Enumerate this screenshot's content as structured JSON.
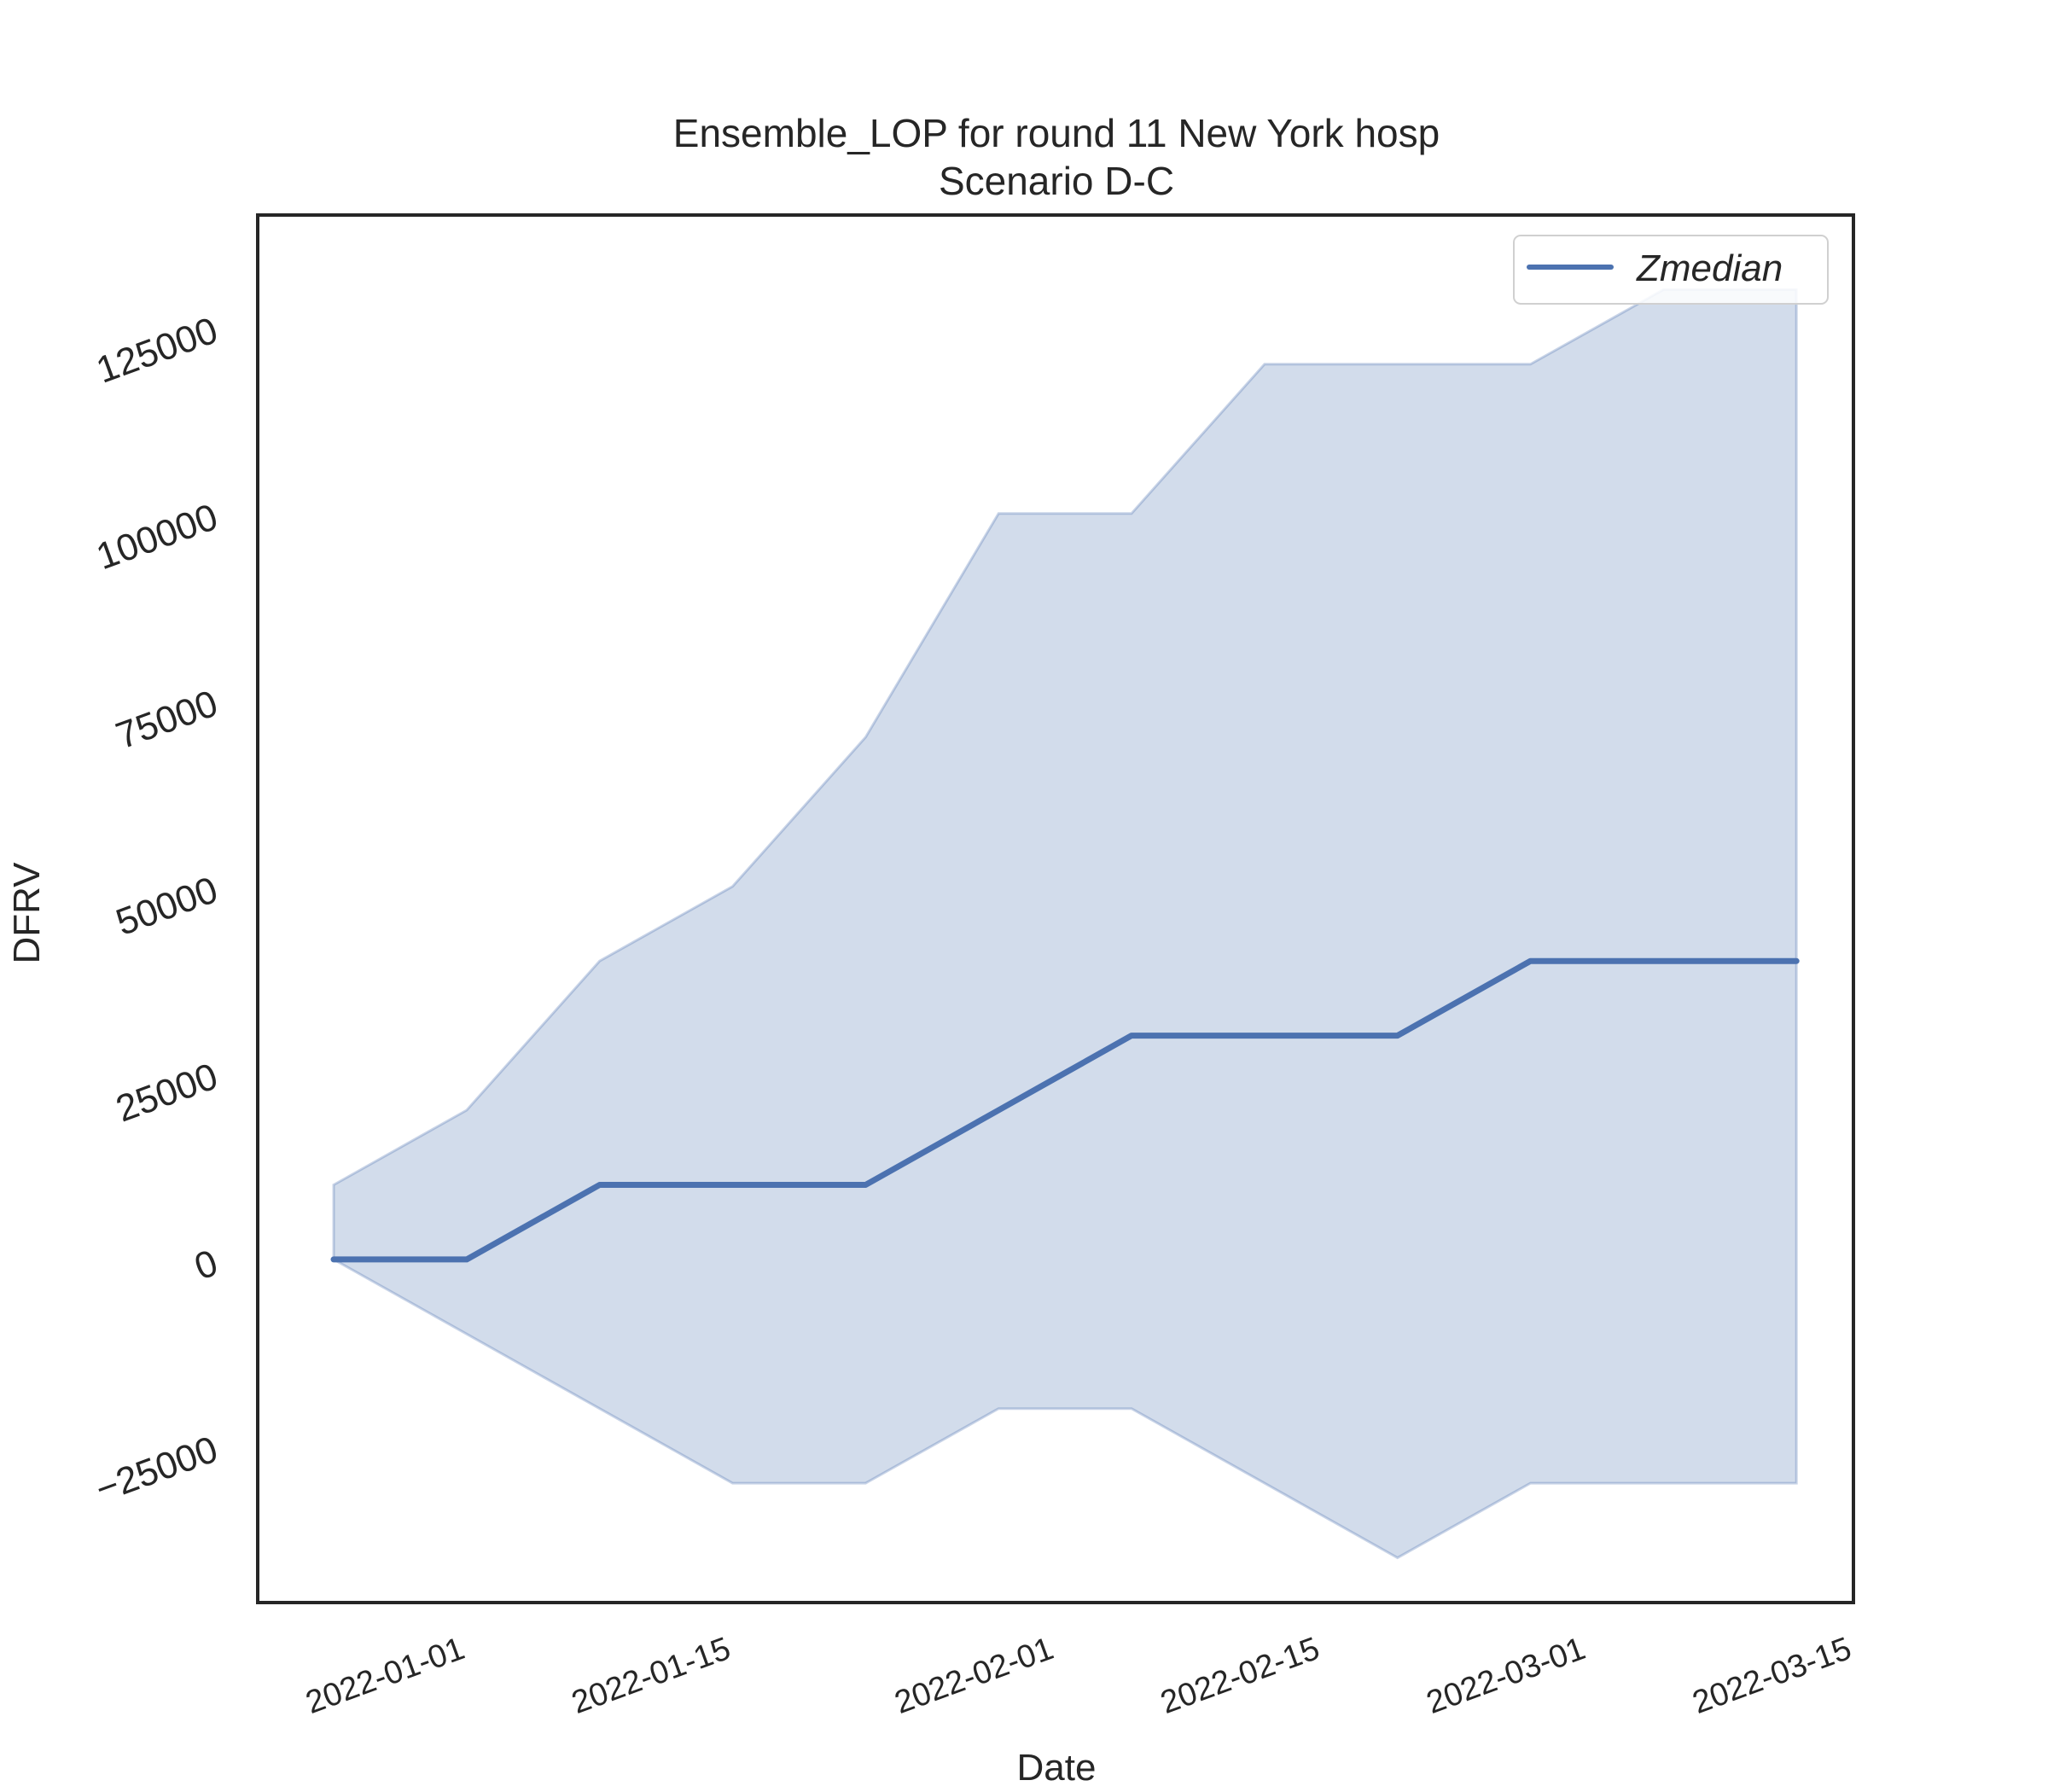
{
  "chart_data": {
    "type": "line",
    "title": "Ensemble_LOP for round 11 New York hosp",
    "subtitle": "Scenario D-C",
    "xlabel": "Date",
    "ylabel": "DFRV",
    "x": [
      "2021-12-25",
      "2022-01-01",
      "2022-01-08",
      "2022-01-15",
      "2022-01-22",
      "2022-01-29",
      "2022-02-05",
      "2022-02-12",
      "2022-02-19",
      "2022-02-26",
      "2022-03-05",
      "2022-03-12"
    ],
    "series": [
      {
        "name": "Zmedian",
        "values": [
          0,
          0,
          10000,
          10000,
          10000,
          20000,
          30000,
          30000,
          30000,
          40000,
          40000,
          40000
        ],
        "lower": [
          0,
          -10000,
          -20000,
          -30000,
          -30000,
          -20000,
          -20000,
          -30000,
          -40000,
          -30000,
          -30000,
          -30000
        ],
        "upper": [
          10000,
          20000,
          40000,
          50000,
          70000,
          100000,
          100000,
          120000,
          120000,
          120000,
          130000,
          130000
        ]
      }
    ],
    "xticks": [
      "2022-01-01",
      "2022-01-15",
      "2022-02-01",
      "2022-02-15",
      "2022-03-01",
      "2022-03-15"
    ],
    "yticks": [
      -25000,
      0,
      25000,
      50000,
      75000,
      100000,
      125000
    ],
    "xlim": [
      "2021-12-21",
      "2022-03-15"
    ],
    "ylim": [
      -46000,
      140000
    ],
    "legend": "top-right",
    "grid": false,
    "colors": {
      "line": "#4c72b0",
      "band": "#4c72b0"
    }
  }
}
